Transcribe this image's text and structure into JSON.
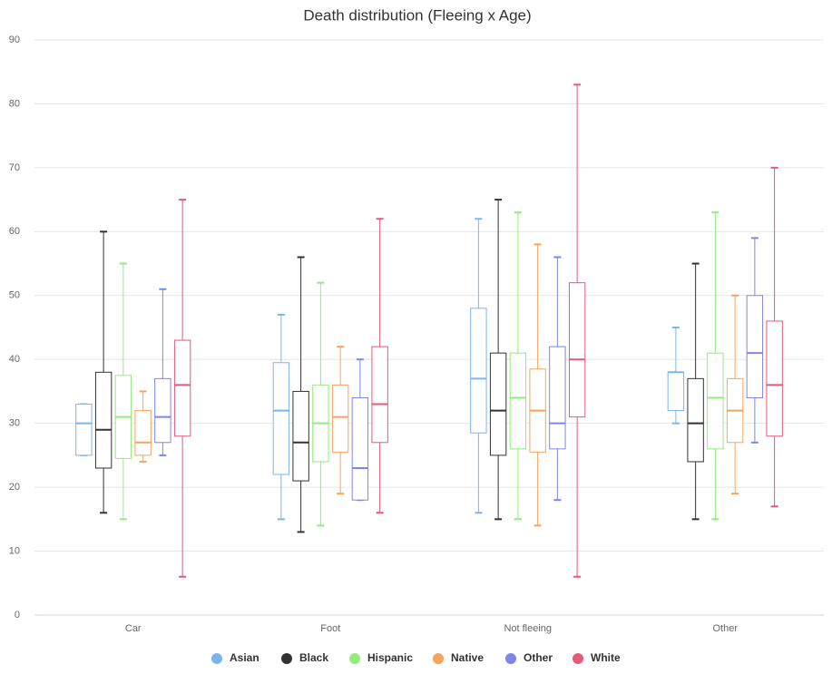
{
  "chart_data": {
    "type": "boxplot",
    "title": "Death distribution (Fleeing x Age)",
    "categories": [
      "Car",
      "Foot",
      "Not fleeing",
      "Other"
    ],
    "ylim": [
      0,
      90
    ],
    "yticks": [
      0,
      10,
      20,
      30,
      40,
      50,
      60,
      70,
      80,
      90
    ],
    "grid": true,
    "legend": "bottom",
    "series": [
      {
        "name": "Asian",
        "color": "#7cb5ec",
        "low": [
          25,
          15,
          16,
          30
        ],
        "q1": [
          25,
          22,
          28.5,
          32
        ],
        "median": [
          30,
          32,
          37,
          38
        ],
        "q3": [
          33,
          39.5,
          48,
          38
        ],
        "high": [
          33,
          47,
          62,
          45
        ]
      },
      {
        "name": "Black",
        "color": "#333333",
        "low": [
          16,
          13,
          15,
          15
        ],
        "q1": [
          23,
          21,
          25,
          24
        ],
        "median": [
          29,
          27,
          32,
          30
        ],
        "q3": [
          38,
          35,
          41,
          37
        ],
        "high": [
          60,
          56,
          65,
          55
        ]
      },
      {
        "name": "Hispanic",
        "color": "#90ed7d",
        "low": [
          15,
          14,
          15,
          15
        ],
        "q1": [
          24.5,
          24,
          26,
          26
        ],
        "median": [
          31,
          30,
          34,
          34
        ],
        "q3": [
          37.5,
          36,
          41,
          41
        ],
        "high": [
          55,
          52,
          63,
          63
        ]
      },
      {
        "name": "Native",
        "color": "#f7a35c",
        "low": [
          24,
          19,
          14,
          19
        ],
        "q1": [
          25,
          25.5,
          25.5,
          27
        ],
        "median": [
          27,
          31,
          32,
          32
        ],
        "q3": [
          32,
          36,
          38.5,
          37
        ],
        "high": [
          35,
          42,
          58,
          50
        ]
      },
      {
        "name": "Other",
        "color": "#8085e9",
        "low": [
          25,
          18,
          18,
          27
        ],
        "q1": [
          27,
          18,
          26,
          34
        ],
        "median": [
          31,
          23,
          30,
          41
        ],
        "q3": [
          37,
          34,
          42,
          50
        ],
        "high": [
          51,
          40,
          56,
          59
        ]
      },
      {
        "name": "White",
        "color": "#e4587a",
        "low": [
          6,
          16,
          6,
          17
        ],
        "q1": [
          28,
          27,
          31,
          28
        ],
        "median": [
          36,
          33,
          40,
          36
        ],
        "q3": [
          43,
          42,
          52,
          46
        ],
        "high": [
          65,
          62,
          83,
          70
        ]
      }
    ]
  }
}
